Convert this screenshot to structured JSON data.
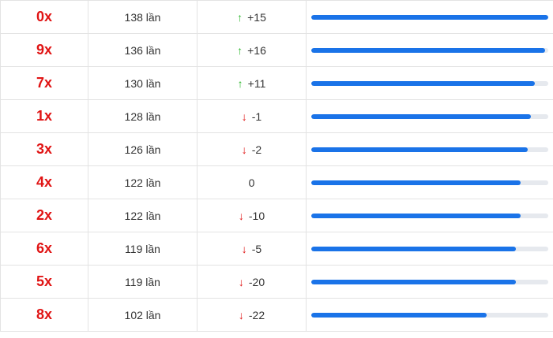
{
  "rows": [
    {
      "label": "0x",
      "count": "138 lần",
      "trend": "up",
      "delta": "+15",
      "fraction": 1.0
    },
    {
      "label": "9x",
      "count": "136 lần",
      "trend": "up",
      "delta": "+16",
      "fraction": 0.986
    },
    {
      "label": "7x",
      "count": "130 lần",
      "trend": "up",
      "delta": "+11",
      "fraction": 0.942
    },
    {
      "label": "1x",
      "count": "128 lần",
      "trend": "down",
      "delta": "-1",
      "fraction": 0.928
    },
    {
      "label": "3x",
      "count": "126 lần",
      "trend": "down",
      "delta": "-2",
      "fraction": 0.913
    },
    {
      "label": "4x",
      "count": "122 lần",
      "trend": "none",
      "delta": "0",
      "fraction": 0.884
    },
    {
      "label": "2x",
      "count": "122 lần",
      "trend": "down",
      "delta": "-10",
      "fraction": 0.884
    },
    {
      "label": "6x",
      "count": "119 lần",
      "trend": "down",
      "delta": "-5",
      "fraction": 0.862
    },
    {
      "label": "5x",
      "count": "119 lần",
      "trend": "down",
      "delta": "-20",
      "fraction": 0.862
    },
    {
      "label": "8x",
      "count": "102 lần",
      "trend": "down",
      "delta": "-22",
      "fraction": 0.739
    }
  ],
  "colors": {
    "label": "#e01414",
    "bar": "#1a73e8",
    "up": "#2eb82e",
    "down": "#e01414",
    "track": "#e6e9ee"
  },
  "icons": {
    "up": "arrow-up-icon",
    "down": "arrow-down-icon"
  }
}
